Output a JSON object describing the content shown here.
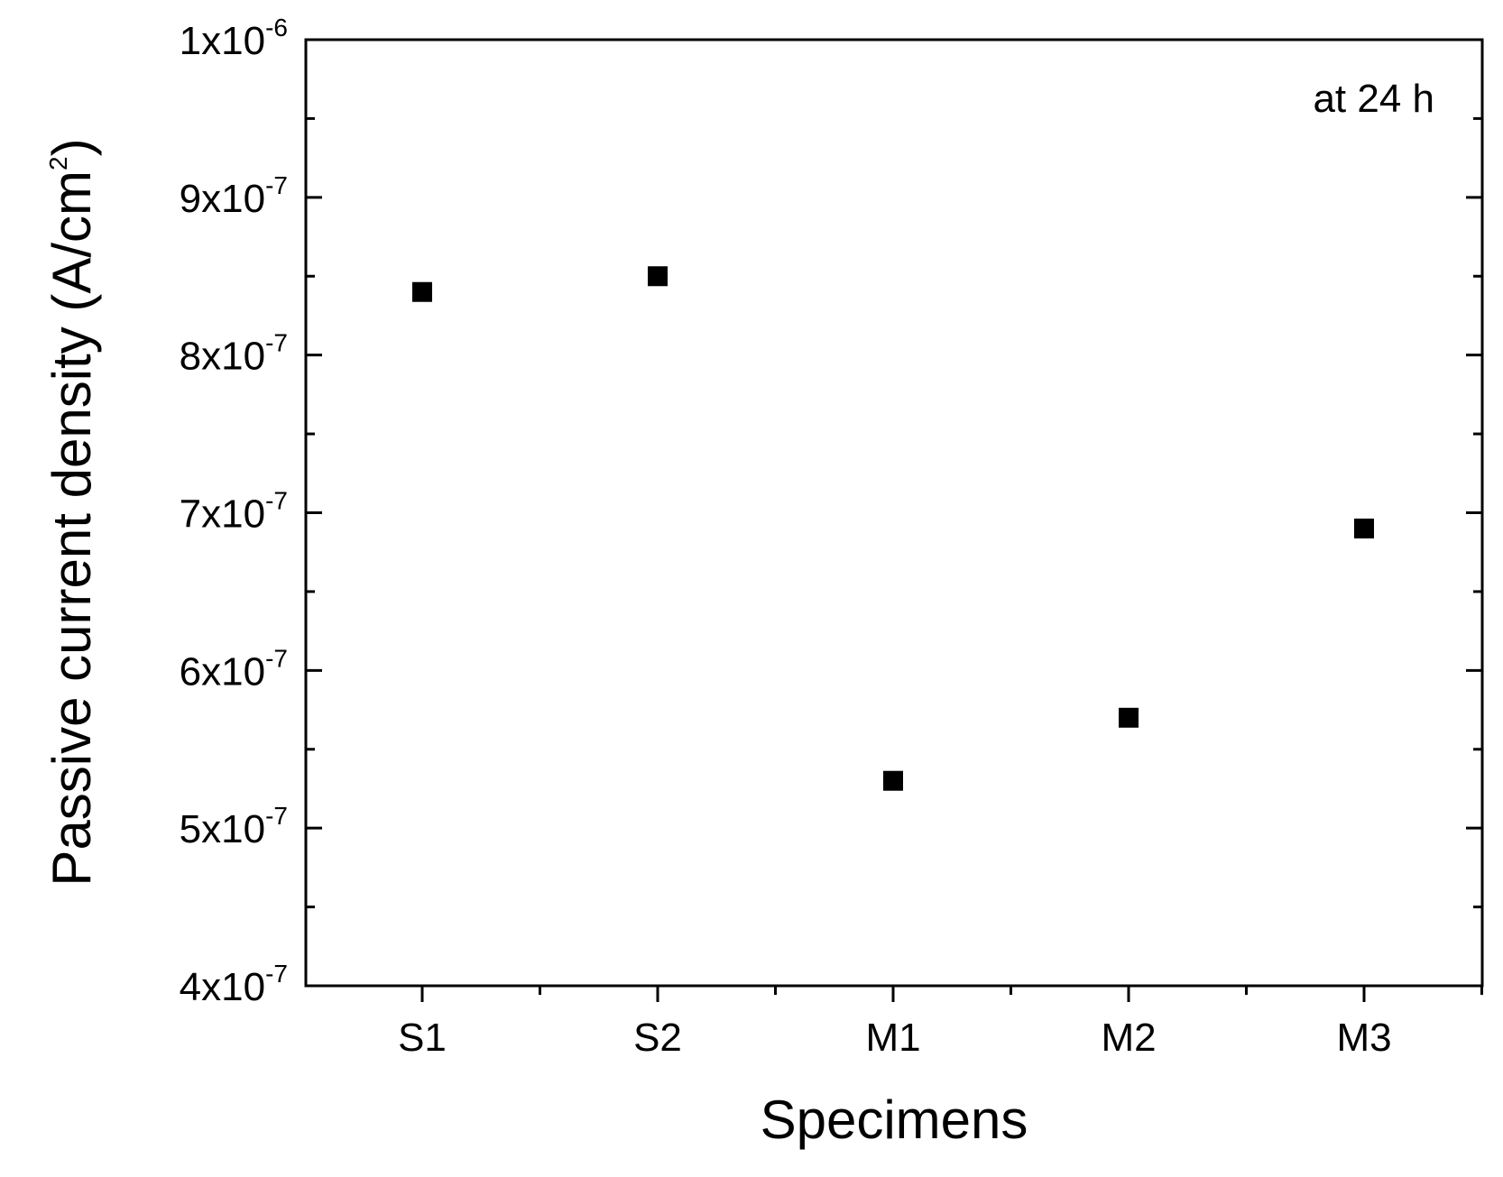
{
  "chart_data": {
    "type": "scatter",
    "title": "",
    "xlabel": "Specimens",
    "ylabel": "Passive current density (A/cm",
    "ylabel_sup": "2",
    "ylabel_suffix": ")",
    "annotation": "at 24 h",
    "categories": [
      "S1",
      "S2",
      "M1",
      "M2",
      "M3"
    ],
    "series": [
      {
        "values": [
          8.4e-07,
          8.5e-07,
          5.3e-07,
          5.7e-07,
          6.9e-07
        ],
        "marker": "square",
        "color": "#000000"
      }
    ],
    "ylim": [
      4e-07,
      1e-06
    ],
    "yticks": [
      {
        "value": 4e-07,
        "mantissa": "4x10",
        "exponent": "-7"
      },
      {
        "value": 5e-07,
        "mantissa": "5x10",
        "exponent": "-7"
      },
      {
        "value": 6e-07,
        "mantissa": "6x10",
        "exponent": "-7"
      },
      {
        "value": 7e-07,
        "mantissa": "7x10",
        "exponent": "-7"
      },
      {
        "value": 8e-07,
        "mantissa": "8x10",
        "exponent": "-7"
      },
      {
        "value": 9e-07,
        "mantissa": "9x10",
        "exponent": "-7"
      },
      {
        "value": 1e-06,
        "mantissa": "1x10",
        "exponent": "-6"
      }
    ],
    "y_minor_ticks": true,
    "x_minor_ticks": true,
    "grid": false,
    "legend": "none"
  }
}
